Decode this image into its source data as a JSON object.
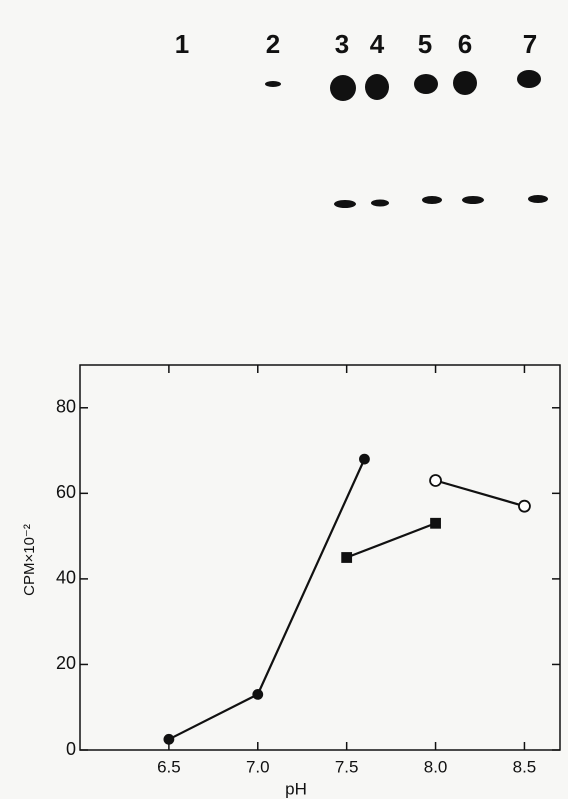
{
  "gel": {
    "lanes": [
      "1",
      "2",
      "3",
      "4",
      "5",
      "6",
      "7"
    ]
  },
  "chart_data": {
    "type": "line",
    "x_label": "pH",
    "y_label": "CPM×10⁻²",
    "xlim": [
      6.0,
      8.7
    ],
    "ylim": [
      0,
      90
    ],
    "xticks": [
      6.5,
      {
        "value": 7,
        "label": "7.0"
      },
      7.5,
      {
        "value": 8,
        "label": "8.0"
      },
      8.5
    ],
    "yticks": [
      0,
      20,
      40,
      60,
      80
    ],
    "series": [
      {
        "color": "#111111",
        "marker": "circle",
        "filled": true,
        "x": [
          6.5,
          7.0,
          7.6
        ],
        "values": [
          2.5,
          13,
          68
        ]
      },
      {
        "color": "#111111",
        "marker": "square",
        "filled": true,
        "x": [
          7.5,
          8.0
        ],
        "values": [
          45,
          53
        ]
      },
      {
        "color": "#111111",
        "marker": "circle",
        "filled": false,
        "x": [
          8.0,
          8.5
        ],
        "values": [
          63,
          57
        ]
      }
    ]
  }
}
